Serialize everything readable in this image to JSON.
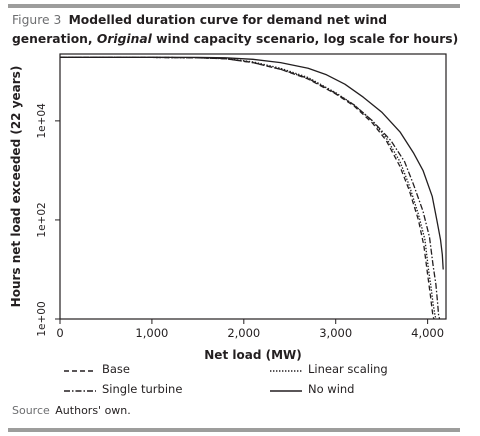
{
  "figure": {
    "label": "Figure 3",
    "title_before_italic": "Modelled duration curve for demand net wind generation,",
    "title_italic": "Original",
    "title_after_italic": "wind capacity scenario, log scale for hours)",
    "source_label": "Source",
    "source_text": "Authors' own."
  },
  "chart_data": {
    "type": "line",
    "xlabel": "Net load (MW)",
    "ylabel": "Hours net load exceeded (22 years)",
    "xlim": [
      0,
      4200
    ],
    "ylim_log10": [
      0,
      5.35
    ],
    "y_scale": "log",
    "x_ticks": [
      0,
      1000,
      2000,
      3000,
      4000
    ],
    "x_tick_labels": [
      "0",
      "1,000",
      "2,000",
      "3,000",
      "4,000"
    ],
    "y_ticks": [
      1,
      100,
      10000
    ],
    "y_tick_labels": [
      "1e+00",
      "1e+02",
      "1e+04"
    ],
    "legend_position": "bottom",
    "series": [
      {
        "name": "Base",
        "style": "dashed",
        "x": [
          0,
          500,
          1000,
          1500,
          1800,
          2100,
          2400,
          2700,
          3000,
          3200,
          3400,
          3550,
          3700,
          3800,
          3900,
          3960,
          4000,
          4030,
          4050,
          4060,
          4070
        ],
        "y": [
          192000,
          192000,
          191000,
          188000,
          180000,
          150000,
          110000,
          70000,
          35000,
          20000,
          9000,
          4000,
          1200,
          400,
          100,
          30,
          8,
          3,
          1.5,
          1.1,
          1
        ]
      },
      {
        "name": "Linear scaling",
        "style": "dotted",
        "x": [
          0,
          500,
          1000,
          1500,
          1800,
          2100,
          2400,
          2700,
          3000,
          3200,
          3400,
          3550,
          3700,
          3800,
          3900,
          3970,
          4010,
          4040,
          4060,
          4080,
          4090
        ],
        "y": [
          192000,
          192000,
          191000,
          188000,
          182000,
          155000,
          115000,
          75000,
          37000,
          21000,
          10000,
          4500,
          1500,
          500,
          130,
          40,
          10,
          4,
          2,
          1.2,
          1
        ]
      },
      {
        "name": "Single turbine",
        "style": "dashdot",
        "x": [
          0,
          500,
          1000,
          1500,
          1800,
          2100,
          2400,
          2700,
          3000,
          3200,
          3400,
          3600,
          3750,
          3850,
          3950,
          4020,
          4060,
          4090,
          4110,
          4120,
          4130
        ],
        "y": [
          192000,
          192000,
          191000,
          188000,
          180000,
          150000,
          110000,
          72000,
          36000,
          21000,
          10000,
          4000,
          1500,
          500,
          150,
          45,
          12,
          5,
          2,
          1.2,
          1
        ]
      },
      {
        "name": "No wind",
        "style": "solid",
        "x": [
          0,
          500,
          1000,
          1500,
          1800,
          2100,
          2400,
          2700,
          2900,
          3100,
          3300,
          3500,
          3700,
          3850,
          3950,
          4050,
          4100,
          4140,
          4160,
          4170
        ],
        "y": [
          192000,
          192000,
          192000,
          191000,
          188000,
          175000,
          150000,
          115000,
          85000,
          55000,
          30000,
          15000,
          6000,
          2200,
          1000,
          300,
          100,
          40,
          20,
          10
        ]
      }
    ]
  },
  "style": {
    "line_color": "#231f20",
    "frame_color": "#231f20",
    "rule_color": "#9d9d9c",
    "caption_label_color": "#6d6e70"
  }
}
